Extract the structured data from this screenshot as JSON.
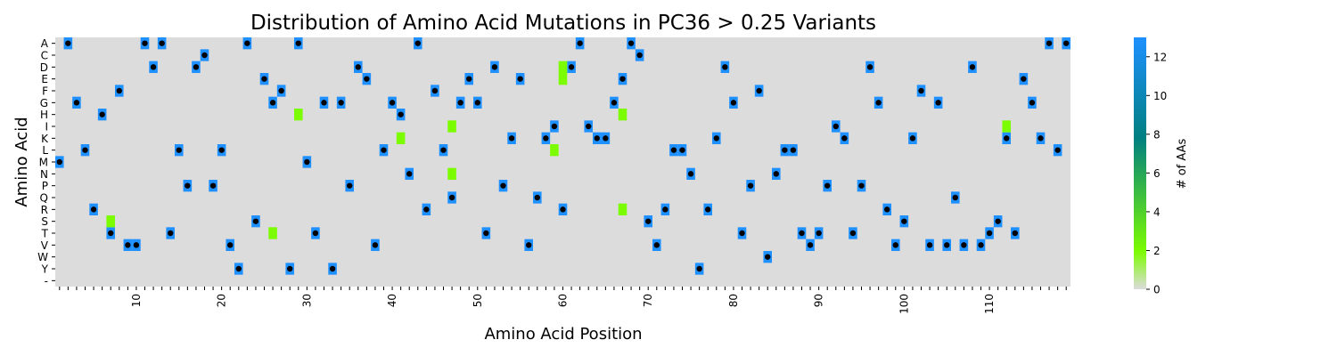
{
  "chart_data": {
    "type": "heatmap",
    "title": "Distribution of Amino Acid Mutations in PC36 > 0.25 Variants",
    "xlabel": "Amino Acid Position",
    "ylabel": "Amino Acid",
    "x_range": [
      1,
      119
    ],
    "x_tick_labels": [
      "10",
      "20",
      "30",
      "40",
      "50",
      "60",
      "70",
      "80",
      "90",
      "100",
      "110"
    ],
    "y_categories": [
      "A",
      "C",
      "D",
      "E",
      "F",
      "G",
      "H",
      "I",
      "K",
      "L",
      "M",
      "N",
      "P",
      "Q",
      "R",
      "S",
      "T",
      "V",
      "W",
      "Y",
      "-"
    ],
    "colorbar": {
      "label": "# of AAs",
      "range": [
        0,
        13
      ],
      "ticks": [
        "0",
        "2",
        "4",
        "6",
        "8",
        "10",
        "12"
      ]
    },
    "colors": {
      "zero": "#dcdcdc",
      "low": "#7cfc00",
      "high": "#1e90ff",
      "mid": "#008080",
      "marker": "#000000"
    },
    "cell_values": {
      "high": 13,
      "low": 2
    },
    "wildtype_marker": "black dot",
    "high_cells": [
      [
        "A",
        2
      ],
      [
        "A",
        11
      ],
      [
        "A",
        13
      ],
      [
        "A",
        23
      ],
      [
        "A",
        29
      ],
      [
        "A",
        43
      ],
      [
        "A",
        62
      ],
      [
        "A",
        68
      ],
      [
        "A",
        117
      ],
      [
        "A",
        119
      ],
      [
        "C",
        18
      ],
      [
        "C",
        69
      ],
      [
        "D",
        12
      ],
      [
        "D",
        17
      ],
      [
        "D",
        36
      ],
      [
        "D",
        52
      ],
      [
        "D",
        61
      ],
      [
        "D",
        79
      ],
      [
        "D",
        96
      ],
      [
        "D",
        108
      ],
      [
        "E",
        25
      ],
      [
        "E",
        37
      ],
      [
        "E",
        49
      ],
      [
        "E",
        55
      ],
      [
        "E",
        67
      ],
      [
        "E",
        114
      ],
      [
        "F",
        8
      ],
      [
        "F",
        27
      ],
      [
        "F",
        45
      ],
      [
        "F",
        83
      ],
      [
        "F",
        102
      ],
      [
        "G",
        3
      ],
      [
        "G",
        26
      ],
      [
        "G",
        32
      ],
      [
        "G",
        34
      ],
      [
        "G",
        40
      ],
      [
        "G",
        48
      ],
      [
        "G",
        50
      ],
      [
        "G",
        66
      ],
      [
        "G",
        80
      ],
      [
        "G",
        97
      ],
      [
        "G",
        104
      ],
      [
        "G",
        115
      ],
      [
        "H",
        6
      ],
      [
        "H",
        41
      ],
      [
        "I",
        59
      ],
      [
        "I",
        63
      ],
      [
        "I",
        92
      ],
      [
        "K",
        54
      ],
      [
        "K",
        58
      ],
      [
        "K",
        64
      ],
      [
        "K",
        65
      ],
      [
        "K",
        78
      ],
      [
        "K",
        93
      ],
      [
        "K",
        101
      ],
      [
        "K",
        112
      ],
      [
        "K",
        116
      ],
      [
        "L",
        4
      ],
      [
        "L",
        15
      ],
      [
        "L",
        20
      ],
      [
        "L",
        39
      ],
      [
        "L",
        46
      ],
      [
        "L",
        73
      ],
      [
        "L",
        74
      ],
      [
        "L",
        86
      ],
      [
        "L",
        87
      ],
      [
        "L",
        118
      ],
      [
        "M",
        1
      ],
      [
        "M",
        30
      ],
      [
        "N",
        42
      ],
      [
        "N",
        75
      ],
      [
        "N",
        85
      ],
      [
        "P",
        16
      ],
      [
        "P",
        19
      ],
      [
        "P",
        35
      ],
      [
        "P",
        53
      ],
      [
        "P",
        82
      ],
      [
        "P",
        91
      ],
      [
        "P",
        95
      ],
      [
        "Q",
        47
      ],
      [
        "Q",
        57
      ],
      [
        "Q",
        106
      ],
      [
        "R",
        5
      ],
      [
        "R",
        44
      ],
      [
        "R",
        60
      ],
      [
        "R",
        72
      ],
      [
        "R",
        77
      ],
      [
        "R",
        98
      ],
      [
        "S",
        24
      ],
      [
        "S",
        70
      ],
      [
        "S",
        100
      ],
      [
        "S",
        111
      ],
      [
        "T",
        7
      ],
      [
        "T",
        14
      ],
      [
        "T",
        31
      ],
      [
        "T",
        51
      ],
      [
        "T",
        81
      ],
      [
        "T",
        88
      ],
      [
        "T",
        90
      ],
      [
        "T",
        94
      ],
      [
        "T",
        110
      ],
      [
        "T",
        113
      ],
      [
        "V",
        9
      ],
      [
        "V",
        10
      ],
      [
        "V",
        21
      ],
      [
        "V",
        38
      ],
      [
        "V",
        56
      ],
      [
        "V",
        71
      ],
      [
        "V",
        89
      ],
      [
        "V",
        99
      ],
      [
        "V",
        103
      ],
      [
        "V",
        105
      ],
      [
        "V",
        107
      ],
      [
        "V",
        109
      ],
      [
        "W",
        84
      ],
      [
        "Y",
        22
      ],
      [
        "Y",
        28
      ],
      [
        "Y",
        33
      ],
      [
        "Y",
        76
      ]
    ],
    "low_cells": [
      [
        "D",
        60
      ],
      [
        "E",
        60
      ],
      [
        "H",
        29
      ],
      [
        "H",
        67
      ],
      [
        "I",
        47
      ],
      [
        "I",
        112
      ],
      [
        "K",
        41
      ],
      [
        "L",
        59
      ],
      [
        "N",
        47
      ],
      [
        "R",
        67
      ],
      [
        "S",
        7
      ],
      [
        "T",
        26
      ]
    ]
  }
}
